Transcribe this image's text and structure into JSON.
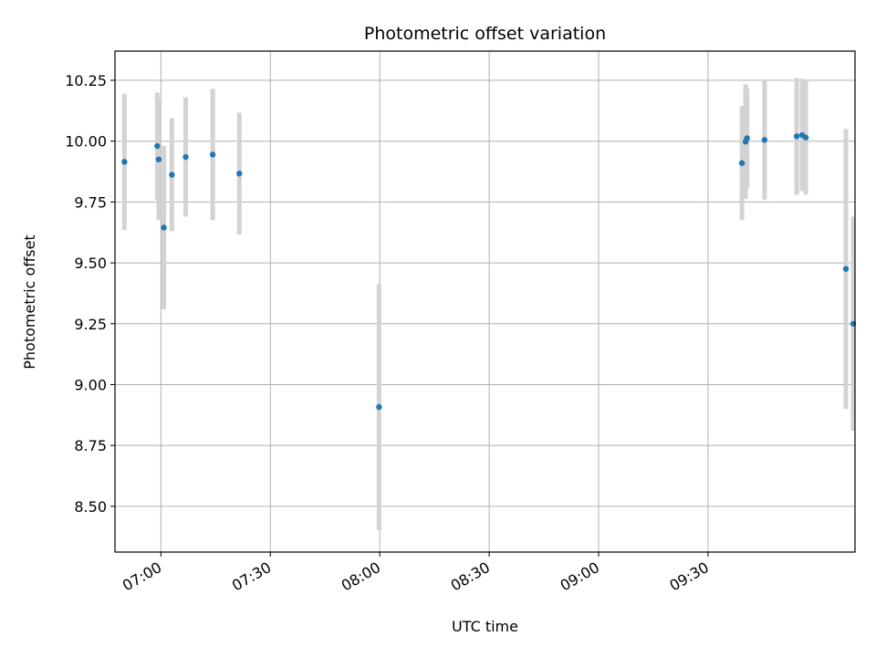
{
  "chart_data": {
    "type": "scatter",
    "title": "Photometric offset variation",
    "xlabel": "UTC time",
    "ylabel": "Photometric offset",
    "grid": true,
    "x_unit": "minutes since 06:00 UTC",
    "xlim": [
      47.4,
      250.3
    ],
    "ylim": [
      8.312,
      10.37
    ],
    "x_ticks": [
      {
        "value": 60,
        "label": "07:00"
      },
      {
        "value": 90,
        "label": "07:30"
      },
      {
        "value": 120,
        "label": "08:00"
      },
      {
        "value": 150,
        "label": "08:30"
      },
      {
        "value": 180,
        "label": "09:00"
      },
      {
        "value": 210,
        "label": "09:30"
      }
    ],
    "y_ticks": [
      {
        "value": 8.5,
        "label": "8.50"
      },
      {
        "value": 8.75,
        "label": "8.75"
      },
      {
        "value": 9.0,
        "label": "9.00"
      },
      {
        "value": 9.25,
        "label": "9.25"
      },
      {
        "value": 9.5,
        "label": "9.50"
      },
      {
        "value": 9.75,
        "label": "9.75"
      },
      {
        "value": 10.0,
        "label": "10.00"
      },
      {
        "value": 10.25,
        "label": "10.25"
      }
    ],
    "point_color": "#1f77b4",
    "errorbar_color": "#d3d3d3",
    "points": [
      {
        "x": 50.0,
        "y": 9.915,
        "err": 0.28
      },
      {
        "x": 59.0,
        "y": 9.98,
        "err": 0.22
      },
      {
        "x": 59.4,
        "y": 9.925,
        "err": 0.25
      },
      {
        "x": 60.8,
        "y": 9.645,
        "err": 0.335
      },
      {
        "x": 63.0,
        "y": 9.862,
        "err": 0.232
      },
      {
        "x": 66.8,
        "y": 9.935,
        "err": 0.245
      },
      {
        "x": 74.2,
        "y": 9.945,
        "err": 0.27
      },
      {
        "x": 81.5,
        "y": 9.867,
        "err": 0.25
      },
      {
        "x": 119.8,
        "y": 8.908,
        "err": 0.505
      },
      {
        "x": 219.3,
        "y": 9.91,
        "err": 0.235
      },
      {
        "x": 220.3,
        "y": 9.998,
        "err": 0.235
      },
      {
        "x": 220.7,
        "y": 10.012,
        "err": 0.205
      },
      {
        "x": 225.5,
        "y": 10.005,
        "err": 0.245
      },
      {
        "x": 234.3,
        "y": 10.02,
        "err": 0.24
      },
      {
        "x": 235.8,
        "y": 10.025,
        "err": 0.23
      },
      {
        "x": 236.8,
        "y": 10.015,
        "err": 0.235
      },
      {
        "x": 247.8,
        "y": 9.475,
        "err": 0.575
      },
      {
        "x": 249.8,
        "y": 9.25,
        "err": 0.44
      }
    ]
  }
}
